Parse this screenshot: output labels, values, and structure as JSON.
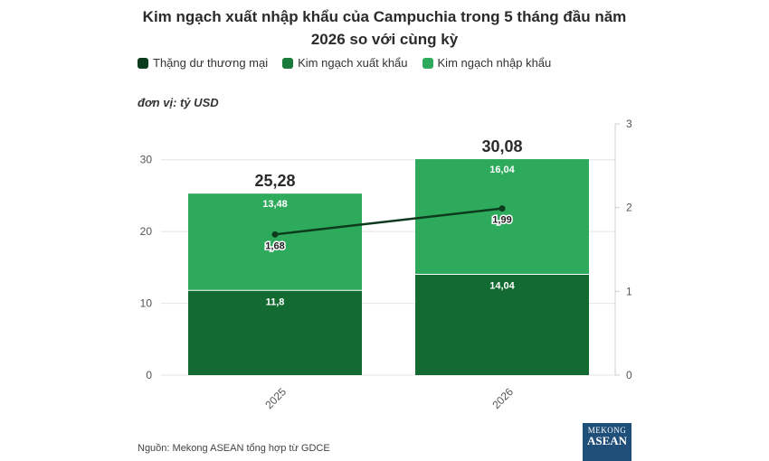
{
  "title_line1": "Kim ngạch xuất nhập khẩu của Campuchia trong 5 tháng đầu năm",
  "title_line2": "2026 so với cùng kỳ",
  "legend": [
    {
      "label": "Thặng dư thương mại",
      "color": "#0d3b1e"
    },
    {
      "label": "Kim ngạch xuất khẩu",
      "color": "#1a7a3c"
    },
    {
      "label": "Kim ngạch nhập khẩu",
      "color": "#2eaa5c"
    }
  ],
  "unit_label": "đơn vị: tỷ USD",
  "source": "Nguồn: Mekong ASEAN tổng hợp từ GDCE",
  "logo": {
    "line1": "MEKONG",
    "line2": "ASEAN"
  },
  "chart_data": {
    "type": "bar",
    "stacked": true,
    "categories": [
      "2025",
      "2026"
    ],
    "totals": [
      "25,28",
      "30,08"
    ],
    "series": [
      {
        "name": "Kim ngạch xuất khẩu",
        "values": [
          11.8,
          14.04
        ],
        "labels": [
          "11,8",
          "14,04"
        ],
        "color": "#136b32",
        "axis": "left"
      },
      {
        "name": "Kim ngạch nhập khẩu",
        "values": [
          13.48,
          16.04
        ],
        "labels": [
          "13,48",
          "16,04"
        ],
        "color": "#2eaa5c",
        "axis": "left"
      },
      {
        "name": "Thặng dư thương mại",
        "type": "line",
        "values": [
          1.68,
          1.99
        ],
        "labels": [
          "1,68",
          "1,99"
        ],
        "color": "#0d3b1e",
        "axis": "right"
      }
    ],
    "y_left": {
      "min": 0,
      "max": 35,
      "ticks": [
        0,
        10,
        20,
        30
      ]
    },
    "y_right": {
      "min": 0,
      "max": 3,
      "ticks": [
        0,
        1,
        2,
        3
      ]
    },
    "grid": true,
    "legend_position": "top-left"
  }
}
